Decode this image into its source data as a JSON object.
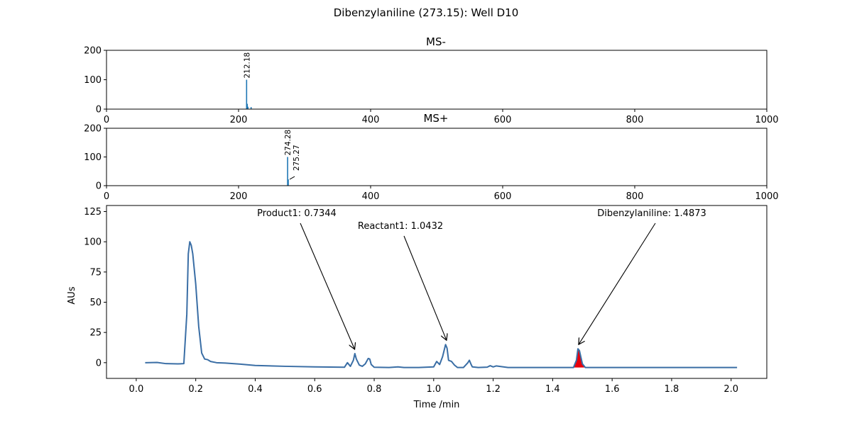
{
  "figure_title": "Dibenzylaniline (273.15): Well D10",
  "colors": {
    "trace": "#3a6ea5",
    "peak_fill": "#e8000b",
    "spectrum": "#1f77b4",
    "axes": "#000000"
  },
  "chart_data": [
    {
      "type": "bar",
      "title": "MS-",
      "xlim": [
        0,
        1000
      ],
      "ylim": [
        0,
        200
      ],
      "xticks": [
        0,
        200,
        400,
        600,
        800,
        1000
      ],
      "yticks": [
        0,
        100,
        200
      ],
      "peaks": [
        {
          "mz": 212.18,
          "intensity": 100
        },
        {
          "mz": 213.2,
          "intensity": 18
        },
        {
          "mz": 214.2,
          "intensity": 8
        },
        {
          "mz": 219.0,
          "intensity": 7
        }
      ],
      "labels": [
        {
          "text": "212.18",
          "mz": 212.18,
          "intensity": 100
        }
      ]
    },
    {
      "type": "bar",
      "title": "MS+",
      "xlim": [
        0,
        1000
      ],
      "ylim": [
        0,
        200
      ],
      "xticks": [
        0,
        200,
        400,
        600,
        800,
        1000
      ],
      "yticks": [
        0,
        100,
        200
      ],
      "peaks": [
        {
          "mz": 274.28,
          "intensity": 100
        },
        {
          "mz": 275.27,
          "intensity": 22
        }
      ],
      "labels": [
        {
          "text": "274.28",
          "mz": 274.28,
          "intensity": 100
        },
        {
          "text": "275.27",
          "mz": 275.27,
          "intensity": 22
        }
      ]
    },
    {
      "type": "line",
      "xlabel": "Time /min",
      "ylabel": "AUs",
      "xlim": [
        -0.1,
        2.12
      ],
      "ylim": [
        -13,
        130
      ],
      "xticks": [
        0.0,
        0.2,
        0.4,
        0.6,
        0.8,
        1.0,
        1.2,
        1.4,
        1.6,
        1.8,
        2.0
      ],
      "xtick_labels": [
        "0.0",
        "0.2",
        "0.4",
        "0.6",
        "0.8",
        "1.0",
        "1.2",
        "1.4",
        "1.6",
        "1.8",
        "2.0"
      ],
      "yticks": [
        0,
        25,
        50,
        75,
        100,
        125
      ],
      "x": [
        0.03,
        0.07,
        0.1,
        0.14,
        0.16,
        0.17,
        0.175,
        0.18,
        0.185,
        0.19,
        0.2,
        0.21,
        0.22,
        0.23,
        0.24,
        0.25,
        0.27,
        0.3,
        0.35,
        0.4,
        0.5,
        0.6,
        0.7,
        0.71,
        0.72,
        0.73,
        0.735,
        0.74,
        0.75,
        0.76,
        0.77,
        0.78,
        0.785,
        0.79,
        0.8,
        0.85,
        0.88,
        0.9,
        0.95,
        1.0,
        1.01,
        1.02,
        1.03,
        1.04,
        1.045,
        1.05,
        1.06,
        1.07,
        1.08,
        1.1,
        1.115,
        1.12,
        1.125,
        1.13,
        1.15,
        1.18,
        1.19,
        1.2,
        1.21,
        1.25,
        1.3,
        1.4,
        1.47,
        1.48,
        1.485,
        1.49,
        1.5,
        1.51,
        1.6,
        1.7,
        1.8,
        1.9,
        2.0,
        2.02
      ],
      "y": [
        0.0,
        0.2,
        -0.8,
        -1.0,
        -0.8,
        40,
        90,
        100,
        97,
        90,
        65,
        30,
        8,
        3,
        2.5,
        1.0,
        0.0,
        -0.3,
        -1.2,
        -2.3,
        -3.0,
        -3.5,
        -3.8,
        0.0,
        -3.0,
        2.0,
        7.5,
        3.0,
        -2.0,
        -3.0,
        -1.0,
        3.5,
        3.0,
        -1.5,
        -3.8,
        -4.0,
        -3.5,
        -4.0,
        -4.0,
        -3.5,
        1.0,
        -1.5,
        5.0,
        15.0,
        12.0,
        2.0,
        1.0,
        -2.0,
        -4.0,
        -4.0,
        0.0,
        2.0,
        -1.0,
        -3.5,
        -4.0,
        -3.7,
        -2.5,
        -3.5,
        -2.7,
        -4.0,
        -4.0,
        -4.0,
        -4.0,
        2.0,
        11.5,
        10.0,
        -1.0,
        -4.0,
        -4.0,
        -4.0,
        -4.0,
        -4.0,
        -4.0,
        -4.0
      ],
      "highlight_range": [
        1.47,
        1.51
      ],
      "annotations": [
        {
          "text": "Product1: 0.7344",
          "x": 0.7344,
          "y": 7.5
        },
        {
          "text": "Reactant1: 1.0432",
          "x": 1.0432,
          "y": 15.0
        },
        {
          "text": "Dibenzylaniline: 1.4873",
          "x": 1.4873,
          "y": 11.5
        }
      ]
    }
  ]
}
